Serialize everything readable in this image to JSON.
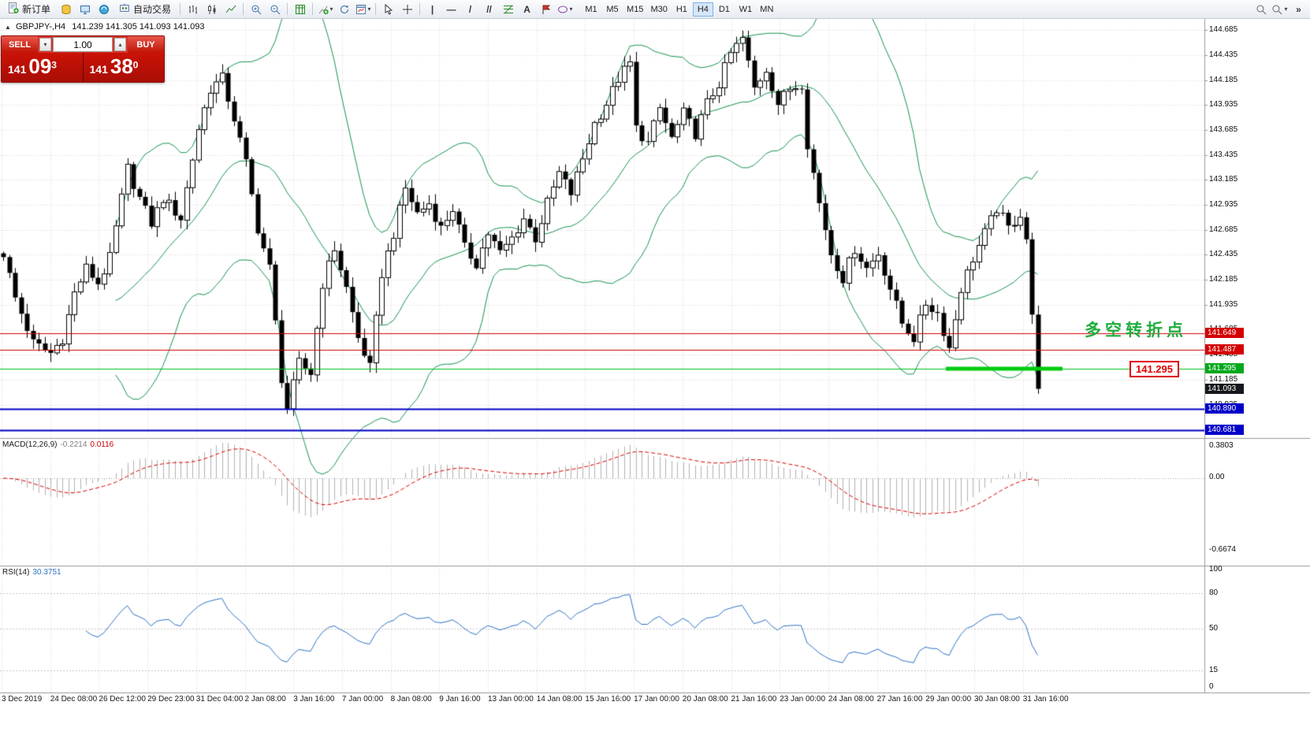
{
  "toolbar": {
    "new_order_label": "新订单",
    "auto_trading_label": "自动交易",
    "timeframes": [
      "M1",
      "M5",
      "M15",
      "M30",
      "H1",
      "H4",
      "D1",
      "W1",
      "MN"
    ],
    "active_timeframe": "H4"
  },
  "icons": {
    "dropdown_arrow": "▾",
    "spin_up": "▴",
    "spin_down": "▾",
    "title_marker": "▲",
    "vertical_line_tool": "|",
    "horizontal_line_tool": "—",
    "trendline_tool": "/",
    "channel_tool": "//",
    "text_tool": "A",
    "overflow_chevron": "»"
  },
  "chart_header": {
    "symbol": "GBPJPY-,H4",
    "ohlc": "141.239 141.305 141.093 141.093"
  },
  "trade_panel": {
    "sell_label": "SELL",
    "buy_label": "BUY",
    "volume": "1.00",
    "sell_price": {
      "big": "141",
      "mid": "09",
      "sup": "3"
    },
    "buy_price": {
      "big": "141",
      "mid": "38",
      "sup": "0"
    }
  },
  "annotations": {
    "turning_point_text": "多空转折点",
    "price_box_label": "141.295"
  },
  "indicator_labels": {
    "macd_name": "MACD(12,26,9)",
    "macd_main": "-0.2214",
    "macd_signal": "0.0116",
    "rsi_name": "RSI(14)",
    "rsi_value": "30.3751"
  },
  "chart_data": {
    "type": "candlestick",
    "symbol": "GBPJPY-",
    "timeframe": "H4",
    "last_ohlc": {
      "open": 141.239,
      "high": 141.305,
      "low": 141.093,
      "close": 141.093
    },
    "current_price": 141.093,
    "ylim": [
      140.6,
      144.79
    ],
    "y_axis": {
      "tick_step": 0.25,
      "ticks": [
        "144.685",
        "144.435",
        "144.185",
        "143.935",
        "143.685",
        "143.435",
        "143.185",
        "142.935",
        "142.685",
        "142.435",
        "142.185",
        "141.935",
        "141.685",
        "141.435",
        "141.185",
        "140.935",
        "140.685"
      ]
    },
    "x_labels": [
      "3 Dec 2019",
      "24 Dec 08:00",
      "26 Dec 12:00",
      "29 Dec 23:00",
      "31 Dec 04:00",
      "2 Jan 08:00",
      "3 Jan 16:00",
      "7 Jan 00:00",
      "8 Jan 08:00",
      "9 Jan 16:00",
      "13 Jan 00:00",
      "14 Jan 08:00",
      "15 Jan 16:00",
      "17 Jan 00:00",
      "20 Jan 08:00",
      "21 Jan 16:00",
      "23 Jan 00:00",
      "24 Jan 08:00",
      "27 Jan 16:00",
      "29 Jan 00:00",
      "30 Jan 08:00",
      "31 Jan 16:00"
    ],
    "bars": 176,
    "price_path": [
      [
        0,
        142.45
      ],
      [
        2,
        142.0
      ],
      [
        5,
        141.55
      ],
      [
        8,
        141.45
      ],
      [
        10,
        141.6
      ],
      [
        12,
        142.05
      ],
      [
        14,
        142.3
      ],
      [
        16,
        142.15
      ],
      [
        18,
        142.4
      ],
      [
        21,
        143.3
      ],
      [
        23,
        143.0
      ],
      [
        25,
        142.75
      ],
      [
        27,
        143.0
      ],
      [
        30,
        142.8
      ],
      [
        33,
        143.7
      ],
      [
        35,
        144.1
      ],
      [
        37,
        144.2
      ],
      [
        39,
        143.8
      ],
      [
        41,
        143.35
      ],
      [
        43,
        142.7
      ],
      [
        45,
        142.3
      ],
      [
        47,
        141.2
      ],
      [
        48,
        140.9
      ],
      [
        50,
        141.35
      ],
      [
        52,
        141.25
      ],
      [
        54,
        142.15
      ],
      [
        56,
        142.5
      ],
      [
        58,
        142.1
      ],
      [
        60,
        141.6
      ],
      [
        62,
        141.3
      ],
      [
        64,
        142.25
      ],
      [
        66,
        142.65
      ],
      [
        68,
        143.1
      ],
      [
        70,
        142.85
      ],
      [
        72,
        142.95
      ],
      [
        74,
        142.7
      ],
      [
        76,
        142.9
      ],
      [
        78,
        142.5
      ],
      [
        80,
        142.35
      ],
      [
        82,
        142.65
      ],
      [
        84,
        142.45
      ],
      [
        86,
        142.6
      ],
      [
        88,
        142.8
      ],
      [
        90,
        142.6
      ],
      [
        92,
        142.95
      ],
      [
        94,
        143.25
      ],
      [
        96,
        143.05
      ],
      [
        98,
        143.4
      ],
      [
        100,
        143.75
      ],
      [
        102,
        143.95
      ],
      [
        104,
        144.2
      ],
      [
        106,
        144.35
      ],
      [
        107,
        143.7
      ],
      [
        109,
        143.55
      ],
      [
        111,
        143.9
      ],
      [
        113,
        143.6
      ],
      [
        115,
        143.85
      ],
      [
        117,
        143.65
      ],
      [
        119,
        143.95
      ],
      [
        121,
        144.15
      ],
      [
        123,
        144.45
      ],
      [
        125,
        144.6
      ],
      [
        127,
        144.1
      ],
      [
        129,
        144.3
      ],
      [
        131,
        143.95
      ],
      [
        133,
        144.1
      ],
      [
        135,
        144.15
      ],
      [
        136,
        143.55
      ],
      [
        138,
        142.95
      ],
      [
        140,
        142.45
      ],
      [
        142,
        142.2
      ],
      [
        144,
        142.5
      ],
      [
        146,
        142.3
      ],
      [
        148,
        142.45
      ],
      [
        150,
        142.1
      ],
      [
        152,
        141.75
      ],
      [
        154,
        141.6
      ],
      [
        156,
        141.95
      ],
      [
        158,
        141.85
      ],
      [
        160,
        141.5
      ],
      [
        162,
        142.1
      ],
      [
        164,
        142.4
      ],
      [
        166,
        142.65
      ],
      [
        168,
        142.9
      ],
      [
        170,
        142.7
      ],
      [
        172,
        142.85
      ],
      [
        173,
        142.6
      ],
      [
        174,
        141.8
      ],
      [
        175,
        141.093
      ]
    ],
    "bollinger": {
      "period": 20,
      "deviation": 2,
      "color": "#16954f"
    },
    "hlines": [
      {
        "value": 141.649,
        "color": "#d40000",
        "width": 1
      },
      {
        "value": 141.487,
        "color": "#d40000",
        "width": 1
      },
      {
        "value": 141.295,
        "color": "#00bf20",
        "width": 1
      },
      {
        "value": 140.89,
        "color": "#0000c8",
        "width": 2
      },
      {
        "value": 140.681,
        "color": "#0000c8",
        "width": 2
      }
    ],
    "thick_segment": {
      "value": 141.295,
      "x_from": 1200,
      "x_to": 1348,
      "color": "#00cc10",
      "width": 5
    },
    "price_tags": [
      {
        "value": 141.649,
        "label": "141.649",
        "bg": "#d40000"
      },
      {
        "value": 141.487,
        "label": "141.487",
        "bg": "#d40000"
      },
      {
        "value": 141.295,
        "label": "141.295",
        "bg": "#00a81c"
      },
      {
        "value": 141.093,
        "label": "141.093",
        "bg": "#15181c"
      },
      {
        "value": 140.89,
        "label": "140.890",
        "bg": "#0000c8"
      },
      {
        "value": 140.681,
        "label": "140.681",
        "bg": "#0000c8"
      }
    ],
    "macd": {
      "params": [
        12,
        26,
        9
      ],
      "main_value": -0.2214,
      "signal_value": 0.0116,
      "scale_labels": [
        "0.3803",
        "0.00",
        "-0.6674"
      ],
      "hist_color": "#b2b2b2",
      "signal_color": "#dd0000"
    },
    "rsi": {
      "period": 14,
      "value": 30.3751,
      "scale_labels": [
        "100",
        "80",
        "50",
        "15",
        "0"
      ],
      "levels": [
        80,
        50,
        15
      ],
      "color": "#2f74c4"
    }
  }
}
